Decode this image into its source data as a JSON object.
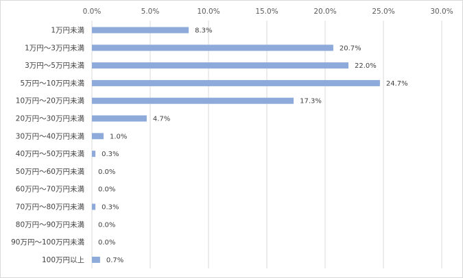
{
  "chart_data": {
    "type": "bar",
    "orientation": "horizontal",
    "x_axis_position": "top",
    "categories": [
      "1万円未満",
      "1万円～3万円未満",
      "3万円～5万円未満",
      "5万円～10万円未満",
      "10万円～20万円未満",
      "20万円～30万円未満",
      "30万円～40万円未満",
      "40万円～50万円未満",
      "50万円～60万円未満",
      "60万円～70万円未満",
      "70万円～80万円未満",
      "80万円～90万円未満",
      "90万円～100万円未満",
      "100万円以上"
    ],
    "values": [
      8.3,
      20.7,
      22.0,
      24.7,
      17.3,
      4.7,
      1.0,
      0.3,
      0.0,
      0.0,
      0.3,
      0.0,
      0.0,
      0.7
    ],
    "data_labels": [
      "8.3%",
      "20.7%",
      "22.0%",
      "24.7%",
      "17.3%",
      "4.7%",
      "1.0%",
      "0.3%",
      "0.0%",
      "0.0%",
      "0.3%",
      "0.0%",
      "0.0%",
      "0.7%"
    ],
    "x_ticks": [
      0,
      5,
      10,
      15,
      20,
      25,
      30
    ],
    "x_tick_labels": [
      "0.0%",
      "5.0%",
      "10.0%",
      "15.0%",
      "20.0%",
      "25.0%",
      "30.0%"
    ],
    "xlim": [
      0,
      30
    ],
    "grid": true,
    "legend": "none",
    "colors": {
      "bar": "#8eaadb",
      "grid": "#d9d9d9",
      "text": "#404040"
    }
  }
}
